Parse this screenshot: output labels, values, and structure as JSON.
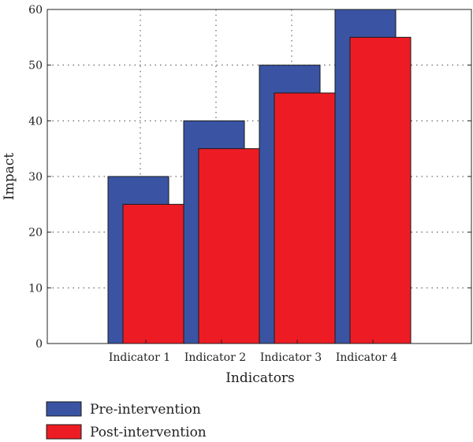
{
  "chart_data": {
    "type": "bar",
    "title": "",
    "xlabel": "Indicators",
    "ylabel": "Impact",
    "ylim": [
      0,
      60
    ],
    "yticks": [
      0,
      10,
      20,
      30,
      40,
      50,
      60
    ],
    "categories": [
      "Indicator 1",
      "Indicator 2",
      "Indicator 3",
      "Indicator 4"
    ],
    "series": [
      {
        "name": "Pre-intervention",
        "color": "#3a54a3",
        "values": [
          30,
          40,
          50,
          60
        ]
      },
      {
        "name": "Post-intervention",
        "color": "#ed1c24",
        "values": [
          25,
          35,
          45,
          55
        ]
      }
    ],
    "grid": true,
    "legend_position": "bottom-left"
  }
}
